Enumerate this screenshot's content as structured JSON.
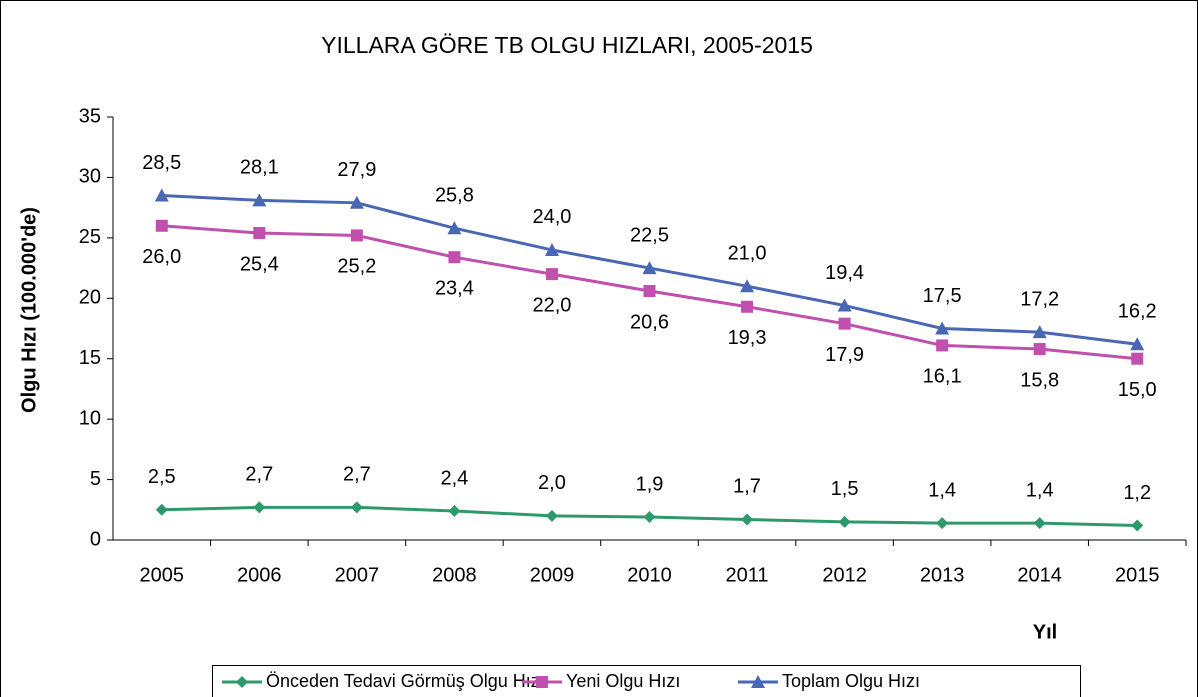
{
  "chart_data": {
    "type": "line",
    "title": "YILLARA GÖRE TB OLGU HIZLARI, 2005-2015",
    "x_label": "Yıl",
    "y_label": "Olgu Hızı (100.000'de)",
    "categories": [
      "2005",
      "2006",
      "2007",
      "2008",
      "2009",
      "2010",
      "2011",
      "2012",
      "2013",
      "2014",
      "2015"
    ],
    "ylim": [
      0,
      35
    ],
    "yticks": [
      0,
      5,
      10,
      15,
      20,
      25,
      30,
      35
    ],
    "legend": "bottom",
    "series": [
      {
        "name": "Önceden Tedavi Görmüş Olgu Hızı",
        "color": "#2e9a6c",
        "marker": "diamond",
        "label_position": "above",
        "values": [
          2.5,
          2.7,
          2.7,
          2.4,
          2.0,
          1.9,
          1.7,
          1.5,
          1.4,
          1.4,
          1.2
        ],
        "value_labels": [
          "2,5",
          "2,7",
          "2,7",
          "2,4",
          "2,0",
          "1,9",
          "1,7",
          "1,5",
          "1,4",
          "1,4",
          "1,2"
        ]
      },
      {
        "name": "Yeni Olgu Hızı",
        "color": "#c04fad",
        "marker": "square",
        "label_position": "below",
        "values": [
          26.0,
          25.4,
          25.2,
          23.4,
          22.0,
          20.6,
          19.3,
          17.9,
          16.1,
          15.8,
          15.0
        ],
        "value_labels": [
          "26,0",
          "25,4",
          "25,2",
          "23,4",
          "22,0",
          "20,6",
          "19,3",
          "17,9",
          "16,1",
          "15,8",
          "15,0"
        ]
      },
      {
        "name": "Toplam Olgu Hızı",
        "color": "#4a67b5",
        "marker": "triangle",
        "label_position": "above",
        "values": [
          28.5,
          28.1,
          27.9,
          25.8,
          24.0,
          22.5,
          21.0,
          19.4,
          17.5,
          17.2,
          16.2
        ],
        "value_labels": [
          "28,5",
          "28,1",
          "27,9",
          "25,8",
          "24,0",
          "22,5",
          "21,0",
          "19,4",
          "17,5",
          "17,2",
          "16,2"
        ]
      }
    ]
  }
}
